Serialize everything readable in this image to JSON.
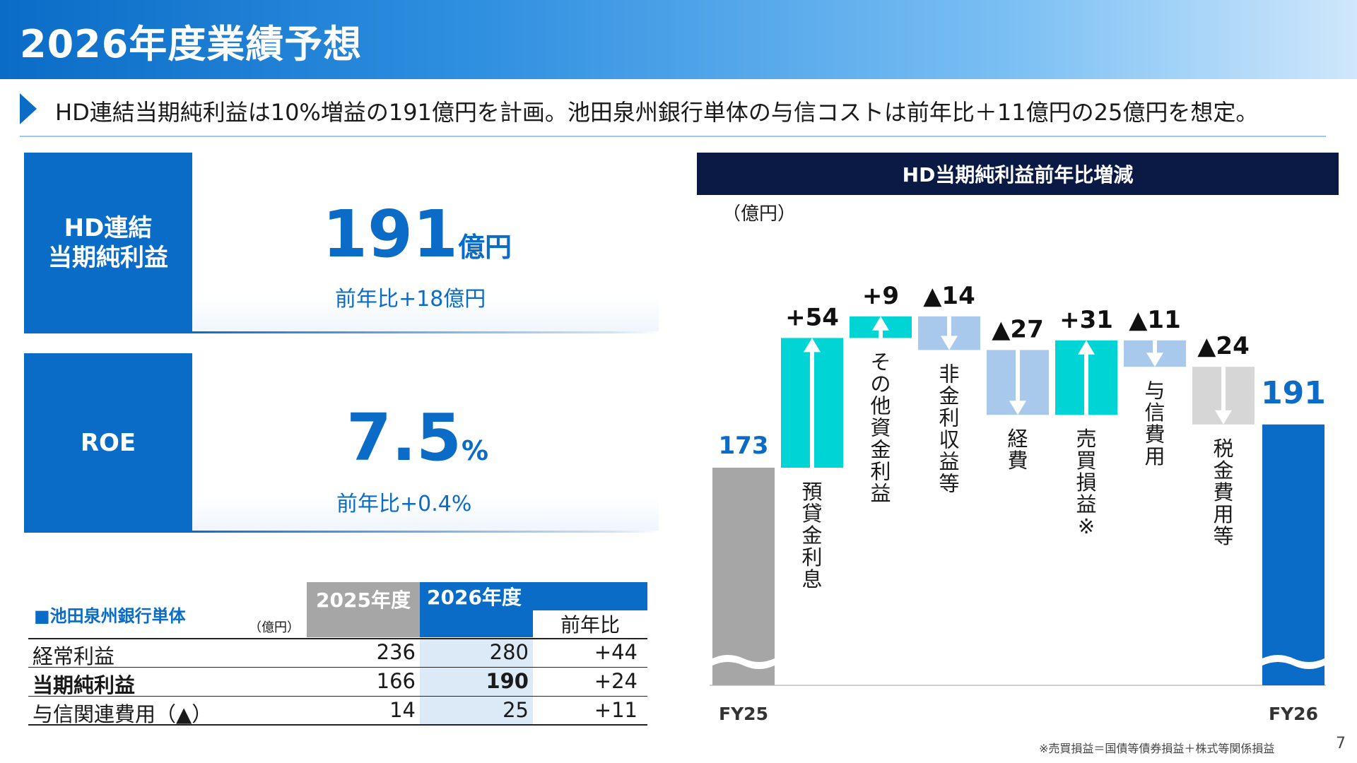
{
  "header": {
    "title": "2026年度業績予想"
  },
  "lead": {
    "text": "HD連結当期純利益は10%増益の191億円を計画。池田泉州銀行単体の与信コストは前年比＋11億円の25億円を想定。"
  },
  "kpis": [
    {
      "label": "HD連結\n当期純利益",
      "value": "191",
      "unit": "億円",
      "sub": "前年比+18億円"
    },
    {
      "label": "ROE",
      "value": "7.5",
      "unit": "%",
      "sub": "前年比+0.4%"
    }
  ],
  "table": {
    "caption": "■池田泉州銀行単体",
    "unit": "（億円）",
    "col_2025": "2025年度",
    "col_2026": "2026年度",
    "col_yoy": "前年比",
    "rows": [
      {
        "label": "経常利益",
        "v2025": "236",
        "v2026": "280",
        "yoy": "+44"
      },
      {
        "label": "当期純利益",
        "v2025": "166",
        "v2026": "190",
        "yoy": "+24"
      },
      {
        "label": "与信関連費用（▲）",
        "v2025": "14",
        "v2026": "25",
        "yoy": "+11"
      }
    ]
  },
  "chart": {
    "title": "HD当期純利益前年比増減",
    "unit": "（億円）"
  },
  "chart_data": {
    "type": "bar",
    "subtype": "waterfall",
    "title": "HD当期純利益前年比増減",
    "unit_label": "（億円）",
    "start": {
      "label": "FY25",
      "value": 173
    },
    "end": {
      "label": "FY26",
      "value": 191
    },
    "steps": [
      {
        "category": "預貸金利息",
        "value": 54,
        "label": "+54",
        "color": "#00d4d4"
      },
      {
        "category": "その他資金利益",
        "value": 9,
        "label": "+9",
        "color": "#00d4d4"
      },
      {
        "category": "非金利収益等",
        "value": -14,
        "label": "▲14",
        "color": "#a9c9ec"
      },
      {
        "category": "経費",
        "value": -27,
        "label": "▲27",
        "color": "#a9c9ec"
      },
      {
        "category": "売買損益※",
        "value": 31,
        "label": "+31",
        "color": "#00d4d4"
      },
      {
        "category": "与信費用",
        "value": -11,
        "label": "▲11",
        "color": "#a9c9ec"
      },
      {
        "category": "税金費用等",
        "value": -24,
        "label": "▲24",
        "color": "#d6d6d6"
      }
    ],
    "colors": {
      "start": "#a6a6a6",
      "end": "#0a6cc6",
      "label_blue": "#0a6cc6"
    }
  },
  "footnote": "※売買損益＝国債等債券損益＋株式等関係損益",
  "page_number": "7"
}
